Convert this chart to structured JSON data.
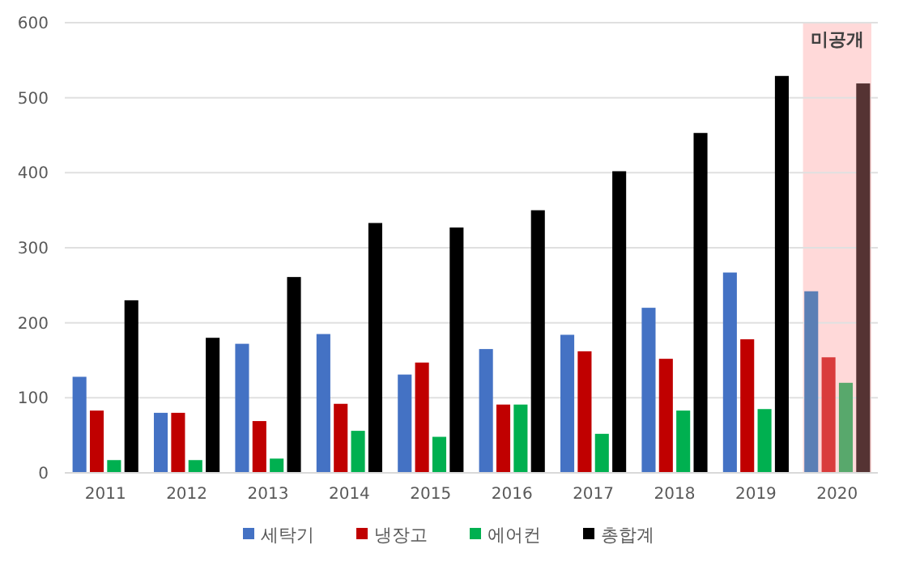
{
  "chart_data": {
    "type": "bar",
    "categories": [
      "2011",
      "2012",
      "2013",
      "2014",
      "2015",
      "2016",
      "2017",
      "2018",
      "2019",
      "2020"
    ],
    "series": [
      {
        "name": "세탁기",
        "color": "#4472c4",
        "colors": [
          "#4472c4",
          "#4472c4",
          "#4472c4",
          "#4472c4",
          "#4472c4",
          "#4472c4",
          "#4472c4",
          "#4472c4",
          "#4472c4",
          "#5b7fb5"
        ],
        "values": [
          128,
          80,
          172,
          185,
          131,
          165,
          184,
          220,
          267,
          242
        ]
      },
      {
        "name": "냉장고",
        "color": "#c00000",
        "colors": [
          "#c00000",
          "#c00000",
          "#c00000",
          "#c00000",
          "#c00000",
          "#c00000",
          "#c00000",
          "#c00000",
          "#c00000",
          "#d93c3c"
        ],
        "values": [
          83,
          80,
          69,
          92,
          147,
          91,
          162,
          152,
          178,
          154
        ]
      },
      {
        "name": "에어컨",
        "color": "#00b050",
        "colors": [
          "#00b050",
          "#00b050",
          "#00b050",
          "#00b050",
          "#00b050",
          "#00b050",
          "#00b050",
          "#00b050",
          "#00b050",
          "#58a86c"
        ],
        "values": [
          17,
          17,
          19,
          56,
          48,
          91,
          52,
          83,
          85,
          120
        ]
      },
      {
        "name": "총합계",
        "color": "#000000",
        "colors": [
          "#000000",
          "#000000",
          "#000000",
          "#000000",
          "#000000",
          "#000000",
          "#000000",
          "#000000",
          "#000000",
          "#553333"
        ],
        "values": [
          230,
          180,
          261,
          333,
          327,
          350,
          402,
          453,
          529,
          519
        ]
      }
    ],
    "ylim": [
      0,
      600
    ],
    "yticks": [
      0,
      100,
      200,
      300,
      400,
      500,
      600
    ],
    "grid": "y",
    "legend": "bottom",
    "bands": [
      {
        "axis": "x",
        "from": "2020",
        "to": "2020",
        "label": "미공개",
        "color": "#ffd9d9"
      }
    ]
  }
}
